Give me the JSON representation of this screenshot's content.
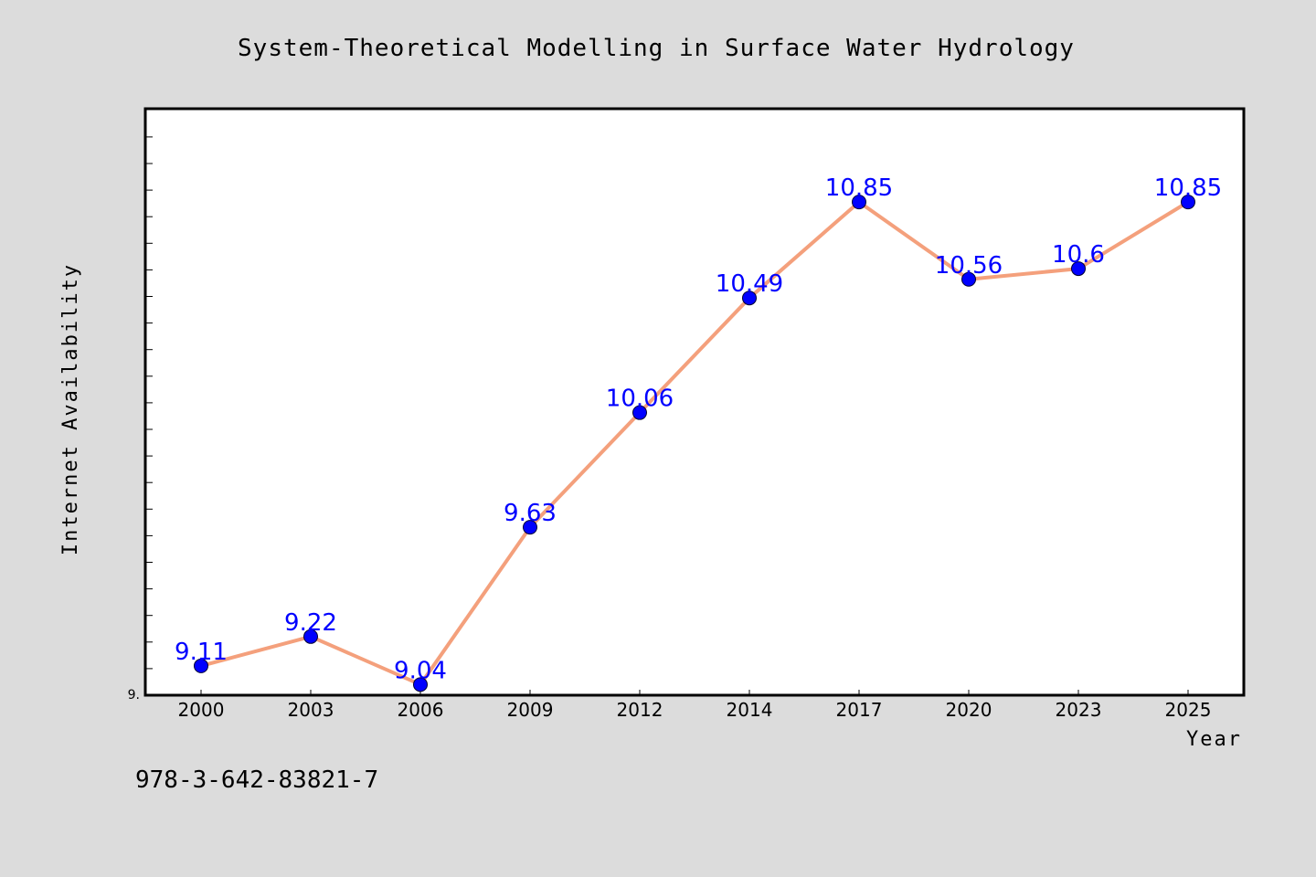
{
  "chart_data": {
    "type": "line",
    "title": "System-Theoretical Modelling in Surface Water Hydrology",
    "xlabel": "Year",
    "ylabel": "Internet Availability",
    "categories": [
      "2000",
      "2003",
      "2006",
      "2009",
      "2012",
      "2014",
      "2017",
      "2020",
      "2023",
      "2025"
    ],
    "series": [
      {
        "values": [
          9.11,
          9.22,
          9.04,
          9.63,
          10.06,
          10.49,
          10.85,
          10.56,
          10.6,
          10.85
        ],
        "labels": [
          "9.11",
          "9.22",
          "9.04",
          "9.63",
          "10.06",
          "10.49",
          "10.85",
          "10.56",
          "10.6",
          "10.85"
        ],
        "line_color": "#f4a07c",
        "marker_color": "#0000ff",
        "label_color": "#0000ff"
      }
    ],
    "y_tick_label": "9.",
    "ylim": [
      9.0,
      11.2
    ],
    "grid": false,
    "legend": "none"
  },
  "footnote": "978-3-642-83821-7",
  "colors": {
    "background": "#dcdcdc",
    "plot_background": "#ffffff"
  }
}
